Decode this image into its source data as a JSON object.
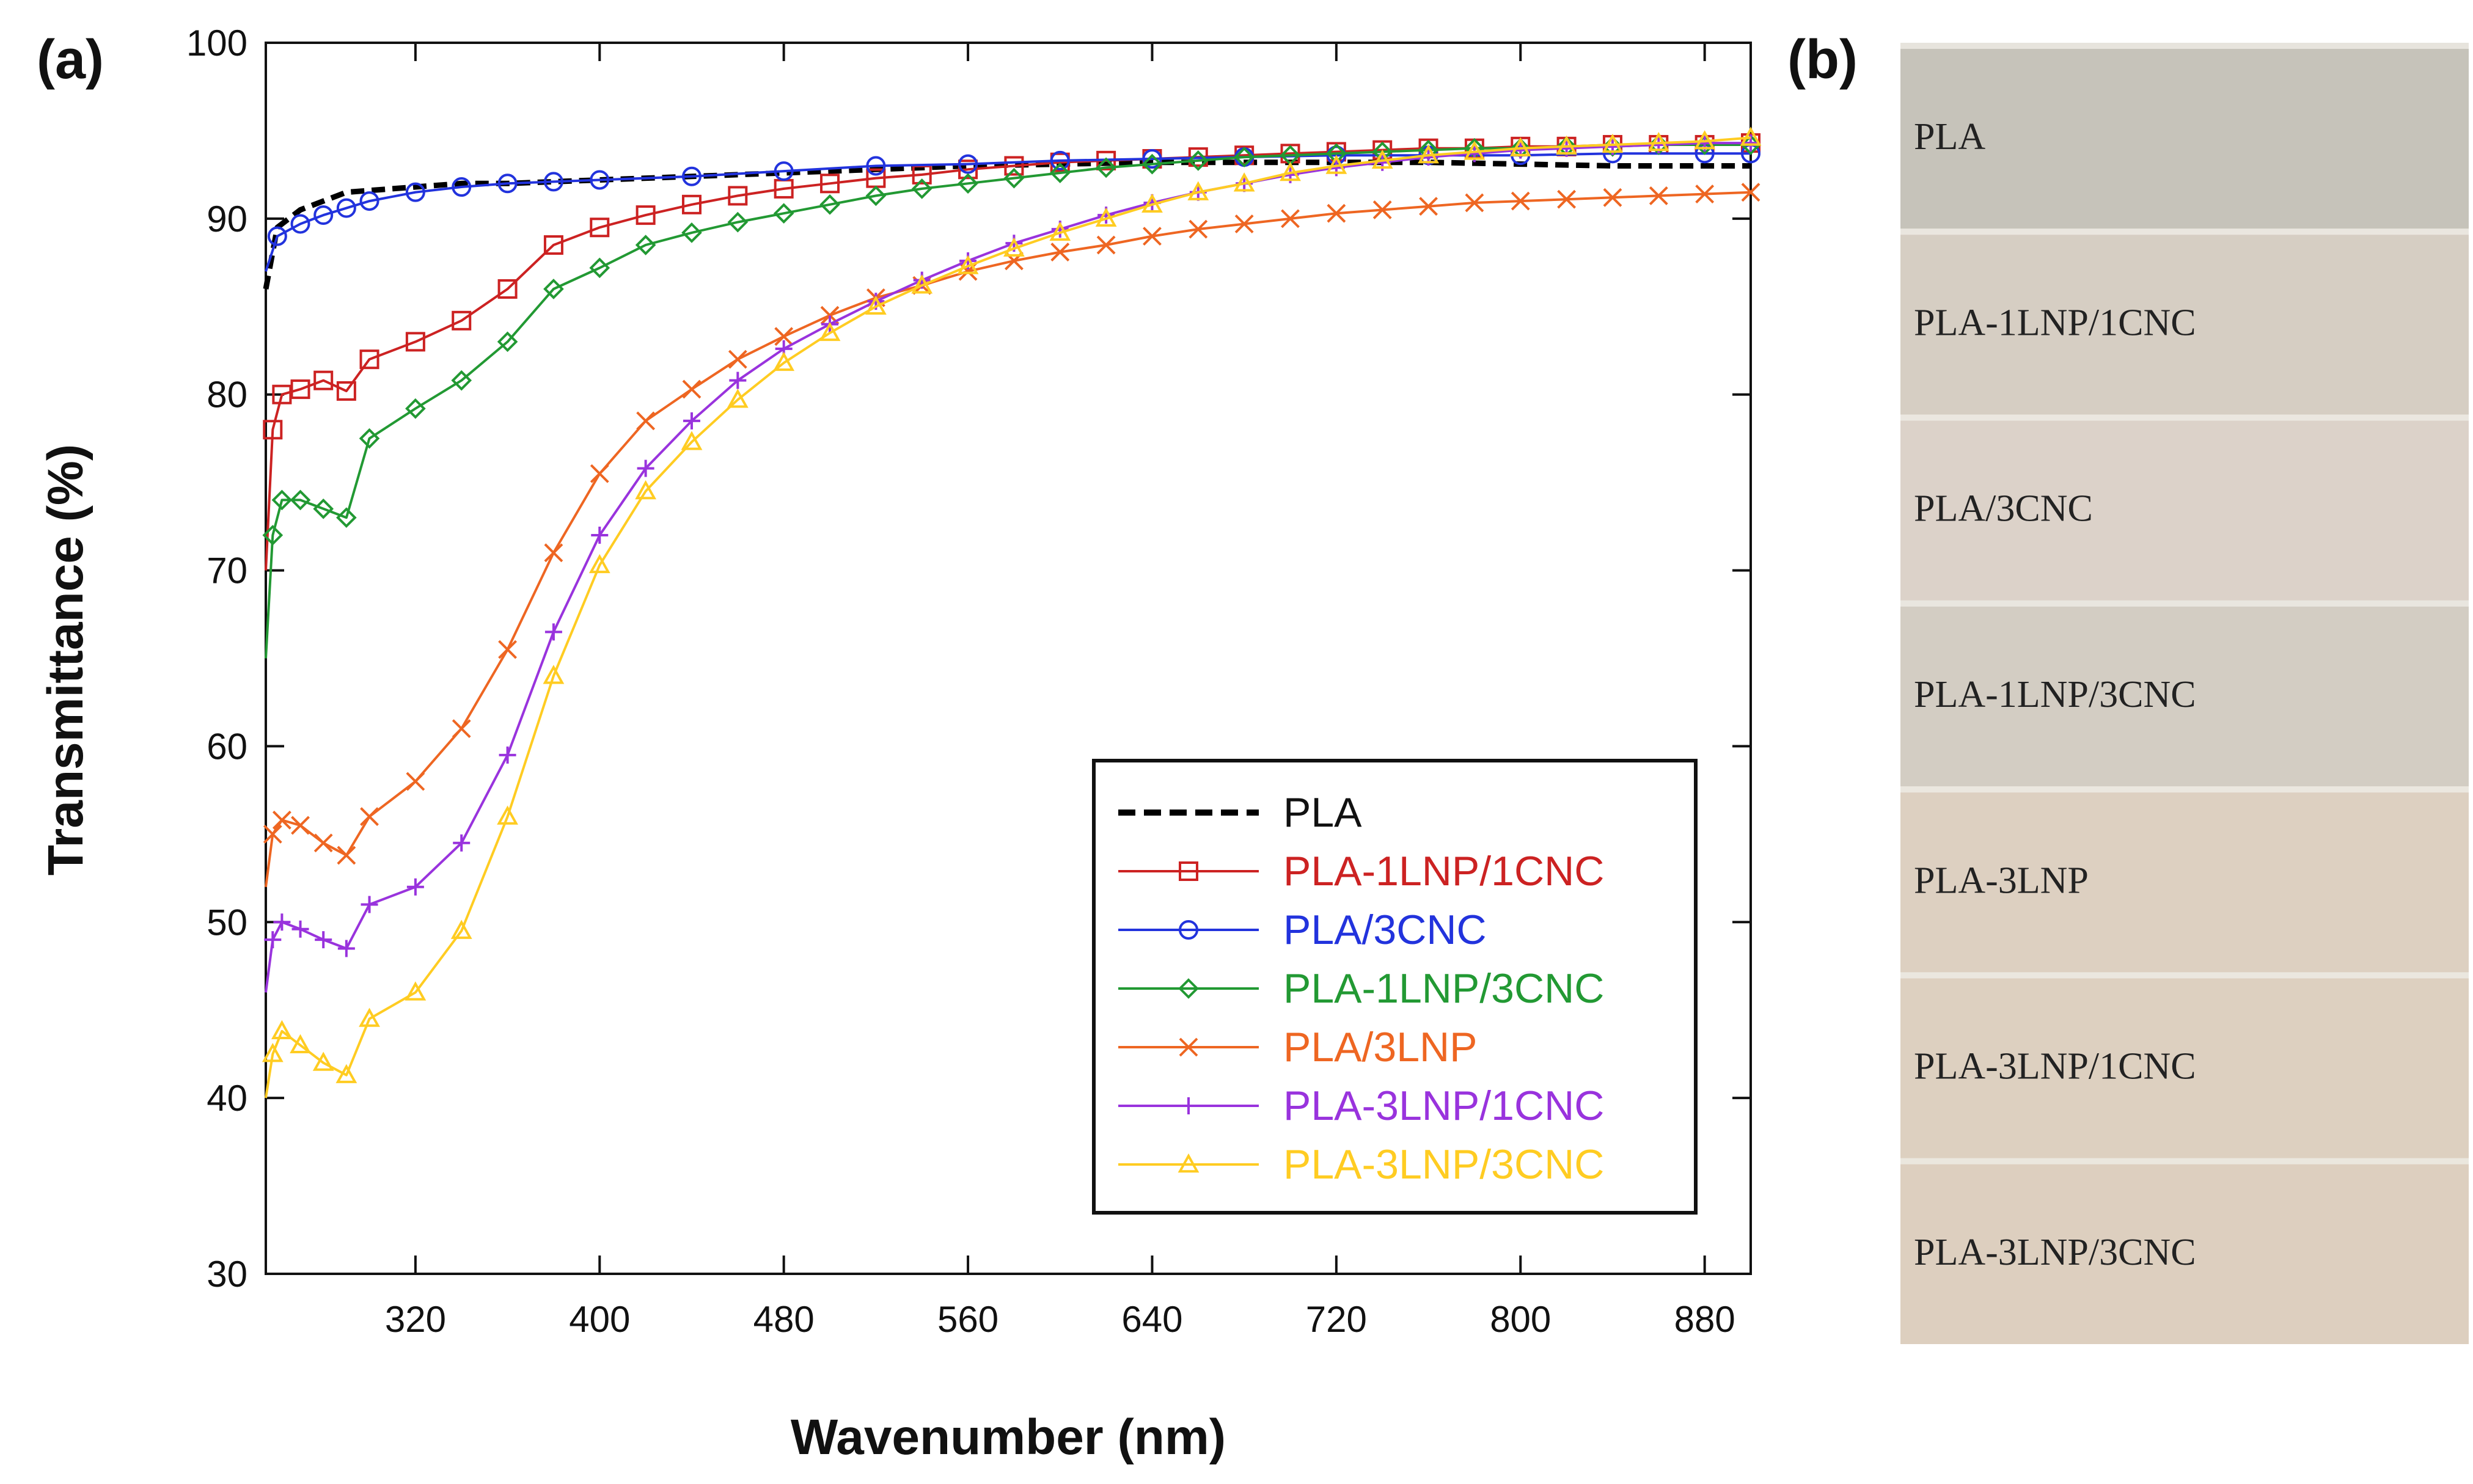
{
  "panel_a_label": "(a)",
  "panel_b_label": "(b)",
  "chart_data": {
    "type": "line",
    "xlabel": "Wavenumber (nm)",
    "ylabel": "Transmittance (%)",
    "xlim": [
      255,
      900
    ],
    "ylim": [
      30,
      100
    ],
    "xticks": [
      320,
      400,
      480,
      560,
      640,
      720,
      800,
      880
    ],
    "yticks": [
      30,
      40,
      50,
      60,
      70,
      80,
      90,
      100
    ],
    "legend_position": "bottom-right",
    "grid": false,
    "series": [
      {
        "name": "PLA",
        "color": "#000000",
        "dash": true,
        "marker": "none",
        "x": [
          255,
          260,
          270,
          280,
          290,
          300,
          320,
          340,
          360,
          380,
          400,
          440,
          480,
          520,
          560,
          600,
          640,
          680,
          720,
          760,
          800,
          840,
          880,
          900
        ],
        "y": [
          86,
          89.5,
          90.5,
          91,
          91.5,
          91.6,
          91.8,
          92,
          92,
          92.1,
          92.2,
          92.4,
          92.6,
          92.8,
          93,
          93.1,
          93.2,
          93.2,
          93.2,
          93.2,
          93.1,
          93,
          93,
          93
        ]
      },
      {
        "name": "PLA-1LNP/1CNC",
        "color": "#cc2222",
        "dash": false,
        "marker": "square",
        "x": [
          255,
          258,
          262,
          270,
          280,
          290,
          300,
          320,
          340,
          360,
          380,
          400,
          420,
          440,
          460,
          480,
          500,
          520,
          540,
          560,
          580,
          600,
          620,
          640,
          660,
          680,
          700,
          720,
          740,
          760,
          780,
          800,
          820,
          840,
          860,
          880,
          900
        ],
        "y": [
          70,
          78,
          80,
          80.3,
          80.8,
          80.2,
          82,
          83,
          84.2,
          86,
          88.5,
          89.5,
          90.2,
          90.8,
          91.3,
          91.7,
          92,
          92.3,
          92.5,
          92.8,
          93,
          93.2,
          93.3,
          93.4,
          93.5,
          93.6,
          93.7,
          93.8,
          93.9,
          94,
          94,
          94.1,
          94.1,
          94.2,
          94.2,
          94.2,
          94.3
        ]
      },
      {
        "name": "PLA/3CNC",
        "color": "#2233dd",
        "dash": false,
        "marker": "circle",
        "x": [
          255,
          260,
          270,
          280,
          290,
          300,
          320,
          340,
          360,
          380,
          400,
          440,
          480,
          520,
          560,
          600,
          640,
          680,
          720,
          760,
          800,
          840,
          880,
          900
        ],
        "y": [
          87,
          89,
          89.7,
          90.2,
          90.6,
          91,
          91.5,
          91.8,
          92,
          92.1,
          92.2,
          92.4,
          92.7,
          93,
          93.1,
          93.3,
          93.4,
          93.5,
          93.6,
          93.6,
          93.6,
          93.7,
          93.7,
          93.7
        ]
      },
      {
        "name": "PLA-1LNP/3CNC",
        "color": "#229933",
        "dash": false,
        "marker": "diamond",
        "x": [
          255,
          258,
          262,
          270,
          280,
          290,
          300,
          320,
          340,
          360,
          380,
          400,
          420,
          440,
          460,
          480,
          500,
          520,
          540,
          560,
          580,
          600,
          620,
          640,
          660,
          680,
          700,
          720,
          740,
          760,
          780,
          800,
          820,
          840,
          860,
          880,
          900
        ],
        "y": [
          65,
          72,
          74,
          74,
          73.5,
          73,
          77.5,
          79.2,
          80.8,
          83,
          86,
          87.2,
          88.5,
          89.2,
          89.8,
          90.3,
          90.8,
          91.3,
          91.7,
          92,
          92.3,
          92.6,
          92.9,
          93.1,
          93.3,
          93.5,
          93.6,
          93.7,
          93.8,
          93.9,
          94,
          94,
          94.1,
          94.1,
          94.2,
          94.2,
          94.2
        ]
      },
      {
        "name": "PLA/3LNP",
        "color": "#ee6622",
        "dash": false,
        "marker": "cross",
        "x": [
          255,
          258,
          262,
          270,
          280,
          290,
          300,
          320,
          340,
          360,
          380,
          400,
          420,
          440,
          460,
          480,
          500,
          520,
          540,
          560,
          580,
          600,
          620,
          640,
          660,
          680,
          700,
          720,
          740,
          760,
          780,
          800,
          820,
          840,
          860,
          880,
          900
        ],
        "y": [
          52,
          55,
          55.8,
          55.5,
          54.5,
          53.8,
          56,
          58,
          61,
          65.5,
          71,
          75.5,
          78.5,
          80.3,
          82,
          83.3,
          84.5,
          85.5,
          86.2,
          87,
          87.6,
          88.1,
          88.5,
          89,
          89.4,
          89.7,
          90,
          90.3,
          90.5,
          90.7,
          90.9,
          91,
          91.1,
          91.2,
          91.3,
          91.4,
          91.5
        ]
      },
      {
        "name": "PLA-3LNP/1CNC",
        "color": "#9933dd",
        "dash": false,
        "marker": "plus",
        "x": [
          255,
          258,
          262,
          270,
          280,
          290,
          300,
          320,
          340,
          360,
          380,
          400,
          420,
          440,
          460,
          480,
          500,
          520,
          540,
          560,
          580,
          600,
          620,
          640,
          660,
          680,
          700,
          720,
          740,
          760,
          780,
          800,
          820,
          840,
          860,
          880,
          900
        ],
        "y": [
          46,
          49,
          50,
          49.6,
          49,
          48.5,
          51,
          52,
          54.5,
          59.5,
          66.5,
          72,
          75.8,
          78.5,
          80.8,
          82.6,
          84,
          85.3,
          86.5,
          87.6,
          88.6,
          89.4,
          90.2,
          90.9,
          91.5,
          92,
          92.5,
          92.9,
          93.2,
          93.5,
          93.7,
          93.9,
          94,
          94.1,
          94.2,
          94.3,
          94.3
        ]
      },
      {
        "name": "PLA-3LNP/3CNC",
        "color": "#ffcc22",
        "dash": false,
        "marker": "triangle",
        "x": [
          255,
          258,
          262,
          270,
          280,
          290,
          300,
          320,
          340,
          360,
          380,
          400,
          420,
          440,
          460,
          480,
          500,
          520,
          540,
          560,
          580,
          600,
          620,
          640,
          660,
          680,
          700,
          720,
          740,
          760,
          780,
          800,
          820,
          840,
          860,
          880,
          900
        ],
        "y": [
          40,
          42.5,
          43.8,
          43,
          42,
          41.3,
          44.5,
          46,
          49.5,
          56,
          64,
          70.3,
          74.5,
          77.3,
          79.7,
          81.8,
          83.5,
          85,
          86.2,
          87.3,
          88.3,
          89.2,
          90,
          90.8,
          91.5,
          92,
          92.6,
          93,
          93.3,
          93.6,
          93.8,
          94,
          94.1,
          94.2,
          94.3,
          94.4,
          94.6
        ]
      }
    ]
  },
  "samples": {
    "items": [
      {
        "label": "PLA",
        "color": "#c6c3ba"
      },
      {
        "label": "PLA-1LNP/1CNC",
        "color": "#d6cec3"
      },
      {
        "label": "PLA/3CNC",
        "color": "#dcd2c9"
      },
      {
        "label": "PLA-1LNP/3CNC",
        "color": "#d3cdc3"
      },
      {
        "label": "PLA-3LNP",
        "color": "#ddd0c1"
      },
      {
        "label": "PLA-3LNP/1CNC",
        "color": "#ddd0c0"
      },
      {
        "label": "PLA-3LNP/3CNC",
        "color": "#ddcfbf"
      }
    ]
  }
}
